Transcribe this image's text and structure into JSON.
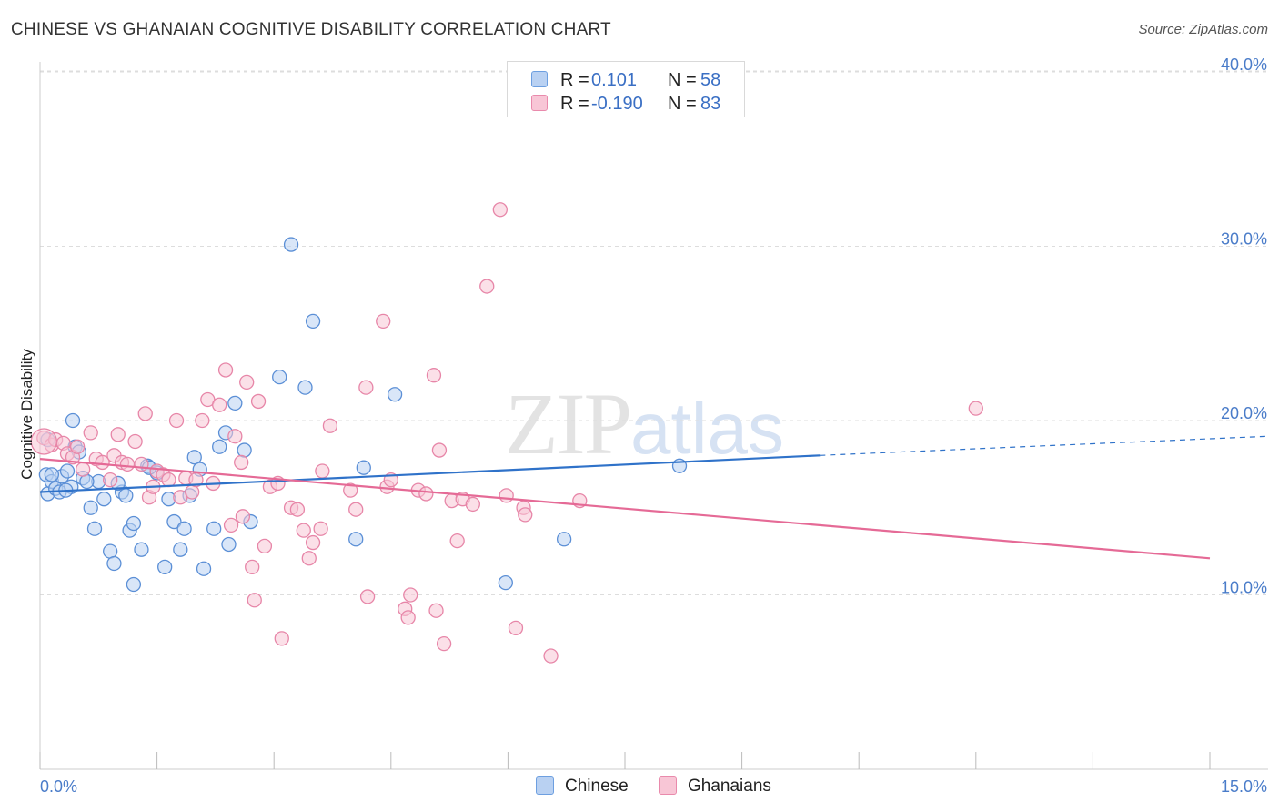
{
  "header": {
    "title": "CHINESE VS GHANAIAN COGNITIVE DISABILITY CORRELATION CHART",
    "source": "Source: ZipAtlas.com"
  },
  "watermark": {
    "zip": "ZIP",
    "atlas": "atlas"
  },
  "legend_top": {
    "rows": [
      {
        "r_label": "R =",
        "r_value": "0.101",
        "n_label": "N =",
        "n_value": "58",
        "color": "#aac8f0",
        "border": "#6d9fe0"
      },
      {
        "r_label": "R =",
        "r_value": "-0.190",
        "n_label": "N =",
        "n_value": "83",
        "color": "#f8c3d5",
        "border": "#e98aac"
      }
    ]
  },
  "legend_bottom": {
    "items": [
      {
        "label": "Chinese"
      },
      {
        "label": "Ghanaians"
      }
    ]
  },
  "colors": {
    "blue_fill": "#b9d1f2",
    "blue_stroke": "#5b8fd6",
    "blue_line": "#2f72c9",
    "pink_fill": "#f8c6d6",
    "pink_stroke": "#e786a8",
    "pink_line": "#e56a96",
    "grid": "#dddddd",
    "tick": "#4a7cc9"
  },
  "chart_data": {
    "type": "scatter",
    "title": "CHINESE VS GHANAIAN COGNITIVE DISABILITY CORRELATION CHART",
    "xlabel": "",
    "ylabel": "Cognitive Disability",
    "xlim": [
      0,
      15
    ],
    "ylim": [
      0,
      40
    ],
    "x_tick_labels": [
      "0.0%",
      "15.0%"
    ],
    "y_ticks": [
      10,
      20,
      30,
      40
    ],
    "y_tick_labels": [
      "10.0%",
      "20.0%",
      "30.0%",
      "40.0%"
    ],
    "grid": "horizontal dashed",
    "legend_position": "top-center",
    "series": [
      {
        "name": "Chinese",
        "color": "#5b8fd6",
        "points": [
          [
            0.1,
            18.9
          ],
          [
            0.08,
            16.9
          ],
          [
            0.1,
            15.8
          ],
          [
            0.15,
            16.5
          ],
          [
            0.2,
            16.1
          ],
          [
            0.25,
            15.9
          ],
          [
            0.28,
            16.8
          ],
          [
            0.35,
            17.1
          ],
          [
            0.4,
            16.2
          ],
          [
            0.45,
            18.5
          ],
          [
            0.5,
            18.2
          ],
          [
            0.55,
            16.7
          ],
          [
            0.42,
            20.0
          ],
          [
            0.65,
            15.0
          ],
          [
            0.7,
            13.8
          ],
          [
            0.75,
            16.5
          ],
          [
            0.82,
            15.5
          ],
          [
            0.9,
            12.5
          ],
          [
            0.95,
            11.8
          ],
          [
            1.05,
            15.9
          ],
          [
            1.15,
            13.7
          ],
          [
            1.2,
            14.1
          ],
          [
            1.3,
            12.6
          ],
          [
            1.2,
            10.6
          ],
          [
            1.38,
            17.4
          ],
          [
            1.5,
            17.0
          ],
          [
            1.6,
            11.6
          ],
          [
            1.65,
            15.5
          ],
          [
            1.72,
            14.2
          ],
          [
            1.8,
            12.6
          ],
          [
            1.85,
            13.8
          ],
          [
            1.92,
            15.7
          ],
          [
            1.98,
            17.9
          ],
          [
            2.05,
            17.2
          ],
          [
            2.1,
            11.5
          ],
          [
            2.23,
            13.8
          ],
          [
            2.3,
            18.5
          ],
          [
            2.38,
            19.3
          ],
          [
            2.42,
            12.9
          ],
          [
            2.5,
            21.0
          ],
          [
            2.62,
            18.3
          ],
          [
            2.7,
            14.2
          ],
          [
            3.07,
            22.5
          ],
          [
            3.22,
            30.1
          ],
          [
            3.4,
            21.9
          ],
          [
            3.5,
            25.7
          ],
          [
            4.05,
            13.2
          ],
          [
            4.15,
            17.3
          ],
          [
            4.55,
            21.5
          ],
          [
            5.97,
            10.7
          ],
          [
            6.72,
            13.2
          ],
          [
            8.2,
            17.4
          ],
          [
            1.0,
            16.4
          ],
          [
            0.6,
            16.5
          ],
          [
            0.33,
            16.0
          ],
          [
            1.1,
            15.7
          ],
          [
            1.4,
            17.3
          ],
          [
            0.15,
            16.9
          ]
        ]
      },
      {
        "name": "Ghanaians",
        "color": "#e786a8",
        "points": [
          [
            0.05,
            19.0
          ],
          [
            0.15,
            18.6
          ],
          [
            0.2,
            18.9
          ],
          [
            0.3,
            18.7
          ],
          [
            0.35,
            18.1
          ],
          [
            0.42,
            17.9
          ],
          [
            0.48,
            18.5
          ],
          [
            0.55,
            17.2
          ],
          [
            0.65,
            19.3
          ],
          [
            0.72,
            17.8
          ],
          [
            0.8,
            17.6
          ],
          [
            0.9,
            16.6
          ],
          [
            0.95,
            18.0
          ],
          [
            1.0,
            19.2
          ],
          [
            1.05,
            17.6
          ],
          [
            1.12,
            17.5
          ],
          [
            1.22,
            18.8
          ],
          [
            1.3,
            17.5
          ],
          [
            1.35,
            20.4
          ],
          [
            1.4,
            15.6
          ],
          [
            1.45,
            16.2
          ],
          [
            1.5,
            17.1
          ],
          [
            1.58,
            16.9
          ],
          [
            1.65,
            16.6
          ],
          [
            1.75,
            20.0
          ],
          [
            1.8,
            15.6
          ],
          [
            1.87,
            16.7
          ],
          [
            1.95,
            15.9
          ],
          [
            2.0,
            16.6
          ],
          [
            2.08,
            20.0
          ],
          [
            2.15,
            21.2
          ],
          [
            2.22,
            16.4
          ],
          [
            2.3,
            20.9
          ],
          [
            2.38,
            22.9
          ],
          [
            2.45,
            14.0
          ],
          [
            2.5,
            19.1
          ],
          [
            2.58,
            17.6
          ],
          [
            2.65,
            22.2
          ],
          [
            2.72,
            11.6
          ],
          [
            2.75,
            9.7
          ],
          [
            2.8,
            21.1
          ],
          [
            2.88,
            12.8
          ],
          [
            2.95,
            16.2
          ],
          [
            3.05,
            16.4
          ],
          [
            3.1,
            7.5
          ],
          [
            3.22,
            15.0
          ],
          [
            3.3,
            14.9
          ],
          [
            3.38,
            13.7
          ],
          [
            3.45,
            12.1
          ],
          [
            3.5,
            13.0
          ],
          [
            3.6,
            13.8
          ],
          [
            3.62,
            17.1
          ],
          [
            3.72,
            19.7
          ],
          [
            4.05,
            14.9
          ],
          [
            4.18,
            21.9
          ],
          [
            4.2,
            9.9
          ],
          [
            4.4,
            25.7
          ],
          [
            4.45,
            16.2
          ],
          [
            4.5,
            16.6
          ],
          [
            4.68,
            9.2
          ],
          [
            4.72,
            8.7
          ],
          [
            4.75,
            10.0
          ],
          [
            4.85,
            16.0
          ],
          [
            4.95,
            15.8
          ],
          [
            5.05,
            22.6
          ],
          [
            5.12,
            18.3
          ],
          [
            5.18,
            7.2
          ],
          [
            5.28,
            15.4
          ],
          [
            5.35,
            13.1
          ],
          [
            5.42,
            15.5
          ],
          [
            5.55,
            15.2
          ],
          [
            5.73,
            27.7
          ],
          [
            5.9,
            32.1
          ],
          [
            5.98,
            15.7
          ],
          [
            6.1,
            8.1
          ],
          [
            6.2,
            15.0
          ],
          [
            6.22,
            14.6
          ],
          [
            6.55,
            6.5
          ],
          [
            6.92,
            15.4
          ],
          [
            12.0,
            20.7
          ],
          [
            5.08,
            9.1
          ],
          [
            2.6,
            14.5
          ],
          [
            3.98,
            16.0
          ]
        ]
      }
    ],
    "trend_lines": [
      {
        "series": "Chinese",
        "solid": [
          [
            0.0,
            15.9
          ],
          [
            10.0,
            18.0
          ]
        ],
        "dashed": [
          [
            10.0,
            18.0
          ],
          [
            15.0,
            19.1
          ]
        ]
      },
      {
        "series": "Ghanaians",
        "solid": [
          [
            0.0,
            17.8
          ],
          [
            15.0,
            12.1
          ]
        ]
      }
    ]
  }
}
